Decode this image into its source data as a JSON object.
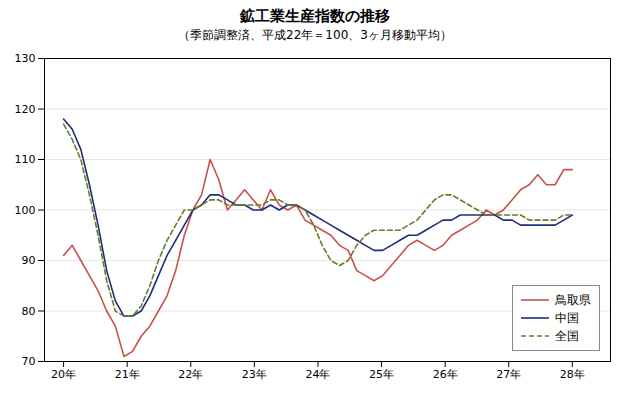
{
  "chart_data": {
    "type": "line",
    "title": "鉱工業生産指数の推移",
    "subtitle": "（季節調整済、平成22年＝100、3ヶ月移動平均）",
    "x": [
      20,
      20.1356,
      20.2712,
      20.4068,
      20.5424,
      20.678,
      20.8136,
      20.9492,
      21.0847,
      21.2203,
      21.3559,
      21.4915,
      21.6271,
      21.7627,
      21.8983,
      22.0339,
      22.1695,
      22.3051,
      22.4407,
      22.5763,
      22.7119,
      22.8475,
      22.9831,
      23.1186,
      23.2542,
      23.3898,
      23.5254,
      23.661,
      23.7966,
      23.9322,
      24.0678,
      24.2034,
      24.339,
      24.4746,
      24.6102,
      24.7458,
      24.8814,
      25.0169,
      25.1525,
      25.2881,
      25.4237,
      25.5593,
      25.6949,
      25.8305,
      25.9661,
      26.1017,
      26.2373,
      26.3729,
      26.5085,
      26.6441,
      26.7797,
      26.9153,
      27.0508,
      27.1864,
      27.322,
      27.4576,
      27.5932,
      27.7288,
      27.8644,
      28
    ],
    "xlim": [
      19.7,
      28.6
    ],
    "xticks": [
      {
        "value": 20,
        "label": "20年"
      },
      {
        "value": 21,
        "label": "21年"
      },
      {
        "value": 22,
        "label": "22年"
      },
      {
        "value": 23,
        "label": "23年"
      },
      {
        "value": 24,
        "label": "24年"
      },
      {
        "value": 25,
        "label": "25年"
      },
      {
        "value": 26,
        "label": "26年"
      },
      {
        "value": 27,
        "label": "27年"
      },
      {
        "value": 28,
        "label": "28年"
      }
    ],
    "ylim": [
      70,
      130
    ],
    "yticks": [
      70,
      80,
      90,
      100,
      110,
      120,
      130
    ],
    "grid": true,
    "legend": "lower right",
    "series": [
      {
        "name": "鳥取県",
        "color": "#c8524a",
        "line_style": "solid",
        "values": [
          91,
          93,
          90,
          87,
          84,
          80,
          77,
          71,
          72,
          75,
          77,
          80,
          83,
          88,
          95,
          100,
          103,
          110,
          106,
          100,
          102,
          104,
          102,
          100,
          104,
          101,
          100,
          101,
          98,
          97,
          96,
          95,
          93,
          92,
          88,
          87,
          86,
          87,
          89,
          91,
          93,
          94,
          93,
          92,
          93,
          95,
          96,
          97,
          98,
          100,
          99,
          100,
          102,
          104,
          105,
          107,
          105,
          105,
          108,
          108
        ]
      },
      {
        "name": "中国",
        "color": "#1f2d7a",
        "line_style": "solid",
        "values": [
          118,
          116,
          112,
          105,
          97,
          88,
          82,
          79,
          79,
          80,
          83,
          87,
          91,
          94,
          97,
          100,
          101,
          103,
          103,
          102,
          101,
          101,
          100,
          100,
          101,
          100,
          101,
          101,
          100,
          99,
          98,
          97,
          96,
          95,
          94,
          93,
          92,
          92,
          93,
          94,
          95,
          95,
          96,
          97,
          98,
          98,
          99,
          99,
          99,
          99,
          99,
          98,
          98,
          97,
          97,
          97,
          97,
          97,
          98,
          99
        ]
      },
      {
        "name": "全国",
        "color": "#6b7a2a",
        "line_style": "dashed",
        "values": [
          117,
          114,
          110,
          103,
          95,
          86,
          80,
          79,
          79,
          81,
          85,
          90,
          94,
          97,
          100,
          100,
          101,
          102,
          102,
          101,
          101,
          101,
          101,
          101,
          102,
          102,
          101,
          101,
          100,
          97,
          93,
          90,
          89,
          90,
          93,
          95,
          96,
          96,
          96,
          96,
          97,
          98,
          100,
          102,
          103,
          103,
          102,
          101,
          100,
          99,
          99,
          99,
          99,
          99,
          98,
          98,
          98,
          98,
          99,
          99
        ]
      }
    ]
  }
}
